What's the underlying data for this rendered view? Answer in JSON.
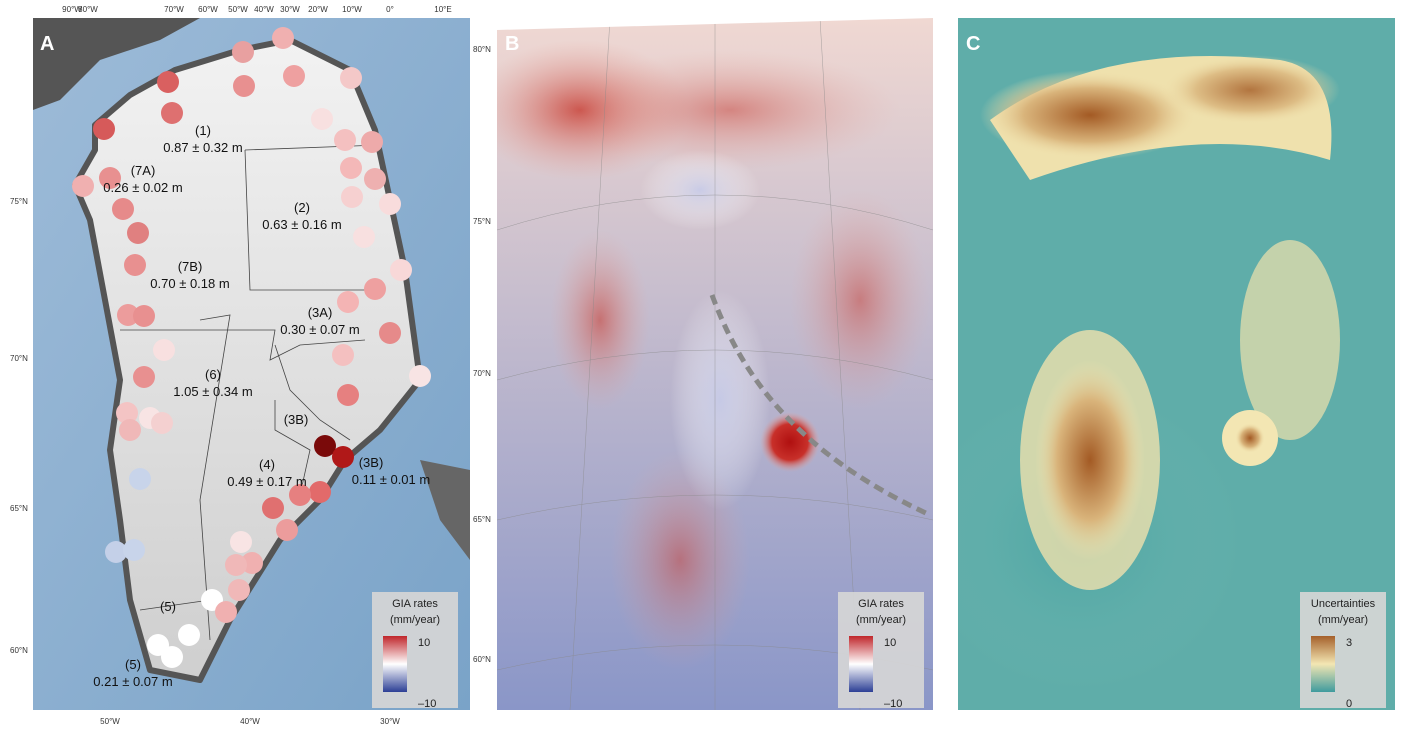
{
  "panels": [
    {
      "letter": "A",
      "legend": {
        "title": "GIA rates",
        "unit": "(mm/year)",
        "max": "10",
        "min": "–10"
      },
      "top_lon": [
        "90°W",
        "80°W",
        "70°W",
        "60°W",
        "50°W",
        "40°W",
        "30°W",
        "20°W",
        "10°W",
        "0°",
        "10°E"
      ],
      "left_lat": [
        "75°N",
        "70°N",
        "65°N",
        "60°N"
      ],
      "bottom_lon": [
        "50°W",
        "40°W",
        "30°W"
      ],
      "regions": [
        {
          "label": "(1)",
          "value": "0.87 ± 0.32 m"
        },
        {
          "label": "(7A)",
          "value": "0.26 ± 0.02 m"
        },
        {
          "label": "(2)",
          "value": "0.63 ± 0.16 m"
        },
        {
          "label": "(7B)",
          "value": "0.70 ± 0.18 m"
        },
        {
          "label": "(3A)",
          "value": "0.30 ± 0.07 m"
        },
        {
          "label": "(6)",
          "value": "1.05 ± 0.34 m"
        },
        {
          "label": "(3B)"
        },
        {
          "label": "(3B)",
          "value": "0.11 ± 0.01 m"
        },
        {
          "label": "(4)",
          "value": "0.49 ± 0.17 m"
        },
        {
          "label": "(5)"
        },
        {
          "label": "(5)",
          "value": "0.21 ± 0.07 m"
        }
      ]
    },
    {
      "letter": "B",
      "legend": {
        "title": "GIA rates",
        "unit": "(mm/year)",
        "max": "10",
        "min": "–10"
      },
      "right_lat": [
        "80°N",
        "75°N",
        "70°N",
        "65°N",
        "60°N"
      ]
    },
    {
      "letter": "C",
      "legend": {
        "title": "Uncertainties",
        "unit": "(mm/year)",
        "max": "3",
        "min": "0"
      }
    }
  ]
}
